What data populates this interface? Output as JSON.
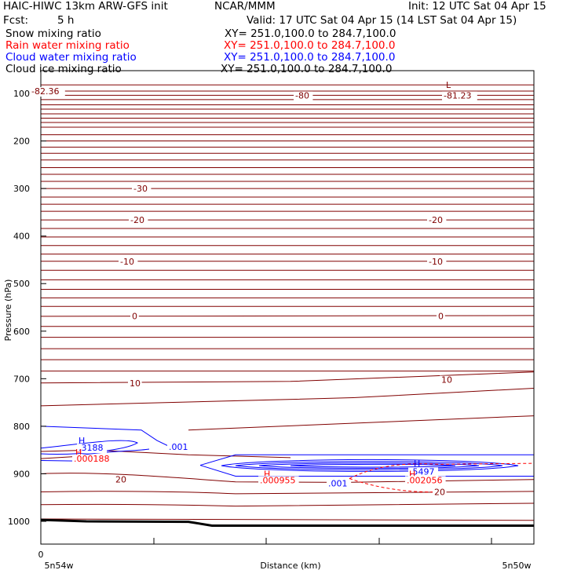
{
  "header": {
    "model": "HAIC-HIWC 13km ARW-GFS init",
    "org": "NCAR/MMM",
    "init": "Init: 12 UTC Sat 04 Apr 15",
    "fcst_label": "Fcst:",
    "fcst_value": "5 h",
    "valid": "Valid: 17 UTC Sat 04 Apr 15 (14 LST Sat 04 Apr 15)"
  },
  "fields": [
    {
      "name": "Snow mixing ratio",
      "xy": "XY= 251.0,100.0 to 284.7,100.0",
      "color": "#000000"
    },
    {
      "name": "Rain water mixing ratio",
      "xy": "XY= 251.0,100.0 to 284.7,100.0",
      "color": "#ff0000"
    },
    {
      "name": "Cloud water mixing ratio",
      "xy": "XY= 251.0,100.0 to 284.7,100.0",
      "color": "#0000ff"
    },
    {
      "name": "Cloud ice mixing ratio",
      "xy": "XY= 251.0,100.0 to 284.7,100.0",
      "color": "#000000"
    }
  ],
  "chart_data": {
    "type": "contour",
    "xlabel": "Distance (km)",
    "ylabel": "Pressure (hPa)",
    "x_tick_labels": [
      "0"
    ],
    "x_endpoints": [
      "5n54w",
      "5n50w"
    ],
    "y_ticks": [
      100,
      200,
      300,
      400,
      500,
      600,
      700,
      800,
      900,
      1000
    ],
    "temperature_contour_labels": [
      {
        "value": "-80",
        "p": 104
      },
      {
        "value": "-30",
        "p": 300
      },
      {
        "value": "-20",
        "p": 366
      },
      {
        "value": "-20",
        "p": 366
      },
      {
        "value": "-10",
        "p": 453
      },
      {
        "value": "-10",
        "p": 453
      },
      {
        "value": "0",
        "p": 568
      },
      {
        "value": "0",
        "p": 568
      },
      {
        "value": "10",
        "p": 709
      },
      {
        "value": "10",
        "p": 702
      },
      {
        "value": "20",
        "p": 912
      },
      {
        "value": "20",
        "p": 938
      }
    ],
    "extrema": {
      "low_min": "-81.23",
      "top_left_value": "-82.36",
      "cloud_water_max_left": ".3188",
      "cloud_water_max_right": ".5497",
      "cloud_water_contour_1": ".001",
      "cloud_water_contour_2": ".001",
      "rain_max_left": ".000188",
      "rain_max_mid": ".000955",
      "rain_max_right": ".002056",
      "H": "H",
      "L": "L"
    },
    "colors": {
      "temperature": "#800000",
      "cloud_water": "#0000ff",
      "rain": "#ff0000",
      "ground": "#000000"
    }
  }
}
